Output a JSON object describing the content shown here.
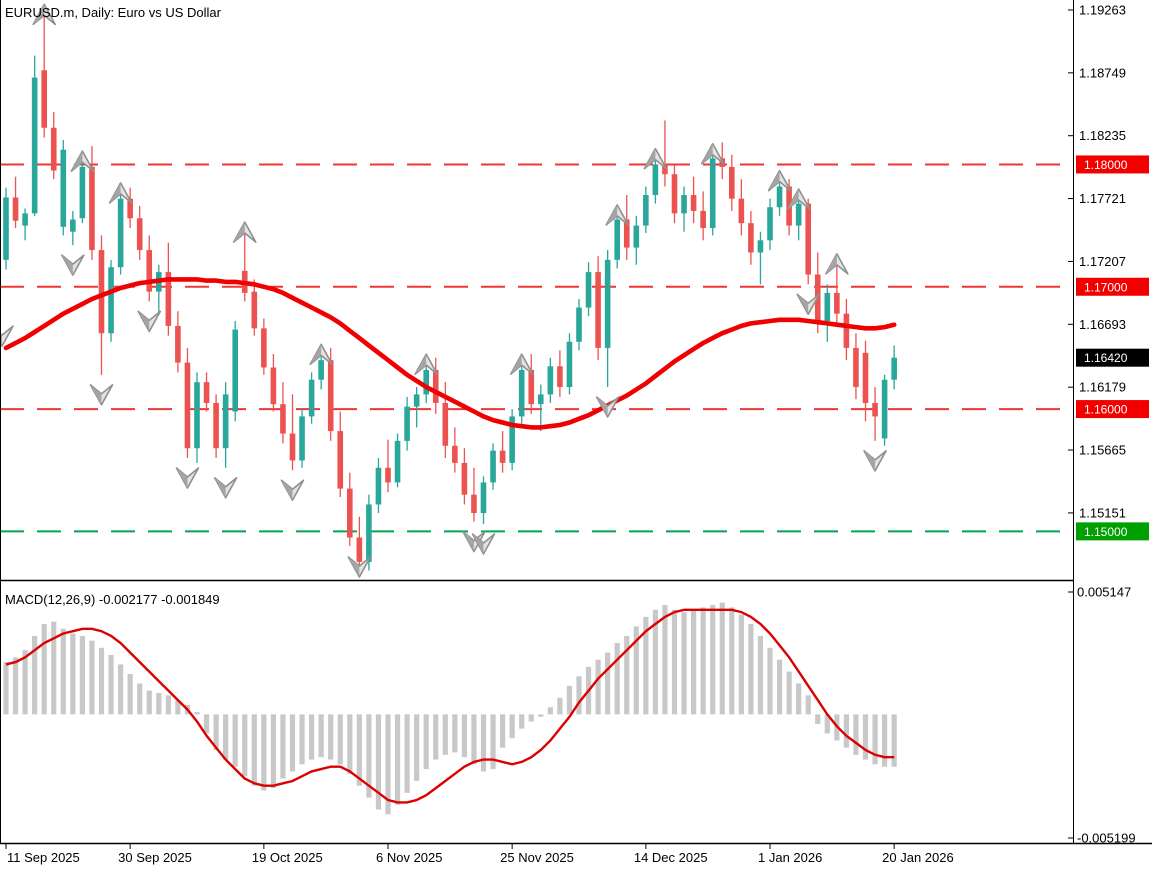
{
  "header": {
    "title": "EURUSD.m, Daily:  Euro vs US Dollar"
  },
  "macd": {
    "label": "MACD(12,26,9) -0.002177 -0.001849"
  },
  "colors": {
    "bull": "#2aa79b",
    "bear": "#ec5350",
    "ma_line": "#f00000",
    "signal_line": "#dd0000",
    "histogram": "#c8c8c8",
    "level_red": "#ef3535",
    "level_green": "#00a651",
    "badge_red": "#f20000",
    "badge_green": "#00a000",
    "badge_black": "#000000",
    "arrow_fill": "#e3e3e3",
    "arrow_dark": "#a5a5a5",
    "arrow_stroke": "#8f8f8f",
    "border": "#000000"
  },
  "price_axis": {
    "labels": [
      {
        "price": 1.19263,
        "text": "1.19263"
      },
      {
        "price": 1.18749,
        "text": "1.18749"
      },
      {
        "price": 1.18235,
        "text": "1.18235"
      },
      {
        "price": 1.17721,
        "text": "1.17721"
      },
      {
        "price": 1.17207,
        "text": "1.17207"
      },
      {
        "price": 1.16693,
        "text": "1.16693"
      },
      {
        "price": 1.16179,
        "text": "1.16179"
      },
      {
        "price": 1.15665,
        "text": "1.15665"
      },
      {
        "price": 1.15151,
        "text": "1.15151"
      }
    ],
    "badges": [
      {
        "price": 1.18,
        "text": "1.18000",
        "kind": "red"
      },
      {
        "price": 1.17,
        "text": "1.17000",
        "kind": "red"
      },
      {
        "price": 1.1642,
        "text": "1.16420",
        "kind": "black"
      },
      {
        "price": 1.16,
        "text": "1.16000",
        "kind": "red"
      },
      {
        "price": 1.15,
        "text": "1.15000",
        "kind": "green"
      }
    ]
  },
  "macd_axis": {
    "max_text": "0.005147",
    "min_text": "-0.005199",
    "max": 0.005147,
    "min": -0.005199
  },
  "time_axis": {
    "ticks": [
      {
        "bar": 0,
        "text": "11 Sep 2025"
      },
      {
        "bar": 13,
        "text": "30 Sep 2025"
      },
      {
        "bar": 27,
        "text": "19 Oct 2025"
      },
      {
        "bar": 40,
        "text": "6 Nov 2025"
      },
      {
        "bar": 53,
        "text": "25 Nov 2025"
      },
      {
        "bar": 67,
        "text": "14 Dec 2025"
      },
      {
        "bar": 80,
        "text": "1 Jan 2026"
      },
      {
        "bar": 93,
        "text": "20 Jan 2026"
      }
    ]
  },
  "chart_data": {
    "type": "candlestick-with-macd",
    "title": "EURUSD.m, Daily:  Euro vs US Dollar",
    "last_price": 1.1642,
    "levels": [
      {
        "price": 1.18,
        "color": "red"
      },
      {
        "price": 1.17,
        "color": "red"
      },
      {
        "price": 1.16,
        "color": "red"
      },
      {
        "price": 1.15,
        "color": "green"
      }
    ],
    "candles": [
      [
        1.1722,
        1.1781,
        1.1714,
        1.1773
      ],
      [
        1.1773,
        1.179,
        1.1748,
        1.1754
      ],
      [
        1.175,
        1.1764,
        1.1738,
        1.176
      ],
      [
        1.176,
        1.1889,
        1.1758,
        1.1871
      ],
      [
        1.1877,
        1.1926,
        1.1822,
        1.183
      ],
      [
        1.183,
        1.1843,
        1.1788,
        1.1795
      ],
      [
        1.1749,
        1.182,
        1.1742,
        1.1812
      ],
      [
        1.1745,
        1.1762,
        1.1734,
        1.1755
      ],
      [
        1.1756,
        1.1806,
        1.1752,
        1.1798
      ],
      [
        1.1798,
        1.1815,
        1.1722,
        1.173
      ],
      [
        1.173,
        1.1742,
        1.1628,
        1.1662
      ],
      [
        1.1662,
        1.1722,
        1.1655,
        1.1716
      ],
      [
        1.1716,
        1.178,
        1.171,
        1.1772
      ],
      [
        1.1772,
        1.1781,
        1.1748,
        1.1756
      ],
      [
        1.1756,
        1.1766,
        1.1722,
        1.173
      ],
      [
        1.173,
        1.1742,
        1.1688,
        1.1696
      ],
      [
        1.1696,
        1.1718,
        1.1678,
        1.1712
      ],
      [
        1.1712,
        1.1736,
        1.166,
        1.1668
      ],
      [
        1.1668,
        1.168,
        1.163,
        1.1638
      ],
      [
        1.1638,
        1.165,
        1.156,
        1.1568
      ],
      [
        1.1568,
        1.163,
        1.1556,
        1.1622
      ],
      [
        1.1622,
        1.163,
        1.1598,
        1.1605
      ],
      [
        1.1605,
        1.1612,
        1.156,
        1.1568
      ],
      [
        1.1568,
        1.1622,
        1.1552,
        1.1612
      ],
      [
        1.1598,
        1.1672,
        1.159,
        1.1665
      ],
      [
        1.1713,
        1.1748,
        1.1688,
        1.1695
      ],
      [
        1.1696,
        1.1706,
        1.166,
        1.1666
      ],
      [
        1.1666,
        1.1674,
        1.1628,
        1.1634
      ],
      [
        1.1634,
        1.1645,
        1.1598,
        1.1604
      ],
      [
        1.1604,
        1.1622,
        1.1572,
        1.158
      ],
      [
        1.158,
        1.1612,
        1.155,
        1.1558
      ],
      [
        1.1558,
        1.16,
        1.1552,
        1.1594
      ],
      [
        1.1594,
        1.163,
        1.1588,
        1.1624
      ],
      [
        1.1624,
        1.1648,
        1.1616,
        1.164
      ],
      [
        1.164,
        1.165,
        1.1574,
        1.1582
      ],
      [
        1.1582,
        1.1598,
        1.1528,
        1.1535
      ],
      [
        1.1535,
        1.1548,
        1.1488,
        1.1495
      ],
      [
        1.1495,
        1.1512,
        1.1466,
        1.1475
      ],
      [
        1.1475,
        1.153,
        1.1468,
        1.1522
      ],
      [
        1.1522,
        1.156,
        1.1515,
        1.1552
      ],
      [
        1.1552,
        1.1575,
        1.1532,
        1.154
      ],
      [
        1.154,
        1.158,
        1.1536,
        1.1574
      ],
      [
        1.1574,
        1.161,
        1.1566,
        1.1602
      ],
      [
        1.1602,
        1.1618,
        1.1585,
        1.1612
      ],
      [
        1.1612,
        1.164,
        1.1605,
        1.1632
      ],
      [
        1.1632,
        1.1642,
        1.1596,
        1.1605
      ],
      [
        1.1605,
        1.1622,
        1.156,
        1.157
      ],
      [
        1.157,
        1.1585,
        1.1548,
        1.1556
      ],
      [
        1.1556,
        1.1568,
        1.1522,
        1.153
      ],
      [
        1.153,
        1.1552,
        1.1508,
        1.1515
      ],
      [
        1.1515,
        1.1545,
        1.1506,
        1.154
      ],
      [
        1.154,
        1.1572,
        1.1534,
        1.1566
      ],
      [
        1.1566,
        1.1582,
        1.1548,
        1.1556
      ],
      [
        1.1556,
        1.16,
        1.155,
        1.1594
      ],
      [
        1.1594,
        1.164,
        1.1588,
        1.1632
      ],
      [
        1.1632,
        1.1645,
        1.1596,
        1.1604
      ],
      [
        1.1604,
        1.162,
        1.1582,
        1.1612
      ],
      [
        1.1612,
        1.1642,
        1.1605,
        1.1635
      ],
      [
        1.1635,
        1.1648,
        1.161,
        1.1618
      ],
      [
        1.1618,
        1.1662,
        1.1612,
        1.1655
      ],
      [
        1.1655,
        1.169,
        1.1648,
        1.1683
      ],
      [
        1.1683,
        1.172,
        1.1676,
        1.1712
      ],
      [
        1.1712,
        1.1725,
        1.164,
        1.165
      ],
      [
        1.165,
        1.173,
        1.1618,
        1.1722
      ],
      [
        1.1722,
        1.1762,
        1.1715,
        1.1755
      ],
      [
        1.1755,
        1.1775,
        1.1722,
        1.1732
      ],
      [
        1.1732,
        1.1758,
        1.1718,
        1.175
      ],
      [
        1.175,
        1.1782,
        1.1744,
        1.1775
      ],
      [
        1.1775,
        1.1808,
        1.1768,
        1.18
      ],
      [
        1.18,
        1.1836,
        1.1782,
        1.1792
      ],
      [
        1.1792,
        1.18,
        1.1752,
        1.176
      ],
      [
        1.176,
        1.1782,
        1.1745,
        1.1775
      ],
      [
        1.1775,
        1.179,
        1.1752,
        1.1762
      ],
      [
        1.1762,
        1.1778,
        1.1738,
        1.1748
      ],
      [
        1.1748,
        1.1812,
        1.1742,
        1.1805
      ],
      [
        1.1805,
        1.1818,
        1.1788,
        1.1798
      ],
      [
        1.1798,
        1.1808,
        1.1762,
        1.1772
      ],
      [
        1.1772,
        1.1788,
        1.1742,
        1.1752
      ],
      [
        1.1752,
        1.1762,
        1.1718,
        1.1728
      ],
      [
        1.1728,
        1.1745,
        1.1702,
        1.1738
      ],
      [
        1.1738,
        1.1772,
        1.173,
        1.1765
      ],
      [
        1.1765,
        1.179,
        1.1758,
        1.1782
      ],
      [
        1.1782,
        1.1788,
        1.1742,
        1.175
      ],
      [
        1.175,
        1.1775,
        1.1738,
        1.1768
      ],
      [
        1.1768,
        1.1772,
        1.1702,
        1.171
      ],
      [
        1.171,
        1.1728,
        1.1662,
        1.1672
      ],
      [
        1.1672,
        1.1702,
        1.1655,
        1.1695
      ],
      [
        1.1695,
        1.1722,
        1.1668,
        1.1678
      ],
      [
        1.1678,
        1.169,
        1.164,
        1.165
      ],
      [
        1.165,
        1.1662,
        1.1608,
        1.1618
      ],
      [
        1.1646,
        1.1656,
        1.159,
        1.1605
      ],
      [
        1.1605,
        1.1618,
        1.1574,
        1.1594
      ],
      [
        1.1576,
        1.1628,
        1.157,
        1.1624
      ],
      [
        1.1624,
        1.1652,
        1.1616,
        1.1642
      ]
    ],
    "ma": [
      1.165,
      1.1654,
      1.1658,
      1.1663,
      1.1668,
      1.1673,
      1.1678,
      1.1682,
      1.1686,
      1.169,
      1.1693,
      1.1696,
      1.1699,
      1.1701,
      1.1703,
      1.1704,
      1.1705,
      1.1706,
      1.1706,
      1.1706,
      1.1706,
      1.1705,
      1.1705,
      1.1704,
      1.1704,
      1.1703,
      1.1702,
      1.17,
      1.1698,
      1.1695,
      1.1691,
      1.1687,
      1.1683,
      1.1679,
      1.1675,
      1.167,
      1.1664,
      1.1658,
      1.1652,
      1.1646,
      1.164,
      1.1634,
      1.1628,
      1.1623,
      1.1618,
      1.1614,
      1.161,
      1.1606,
      1.1602,
      1.1598,
      1.1594,
      1.1591,
      1.1589,
      1.1587,
      1.1586,
      1.1585,
      1.1585,
      1.1586,
      1.1587,
      1.1589,
      1.1592,
      1.1595,
      1.1599,
      1.1603,
      1.1607,
      1.1611,
      1.1616,
      1.1621,
      1.1627,
      1.1633,
      1.1639,
      1.1644,
      1.1649,
      1.1654,
      1.1658,
      1.1662,
      1.1665,
      1.1668,
      1.167,
      1.1671,
      1.1672,
      1.1673,
      1.1673,
      1.1673,
      1.1672,
      1.1671,
      1.167,
      1.1669,
      1.1668,
      1.1667,
      1.1666,
      1.1666,
      1.1667,
      1.1669
    ],
    "arrows_up": [
      4,
      8,
      12,
      25,
      33,
      44,
      54,
      64,
      68,
      74,
      81,
      83,
      87
    ],
    "arrows_down": [
      7,
      10,
      15,
      19,
      23,
      30,
      37,
      49,
      50,
      63,
      84,
      91
    ],
    "edge_arrow_down": {
      "x": 2,
      "low": 1.1676
    },
    "macd": {
      "histogram": [
        0.0022,
        0.0024,
        0.0027,
        0.0033,
        0.0038,
        0.0039,
        0.0036,
        0.0034,
        0.0033,
        0.0031,
        0.0028,
        0.0025,
        0.0021,
        0.0017,
        0.0013,
        0.001,
        0.0009,
        0.0008,
        0.0006,
        0.0004,
        0.0001,
        -0.0008,
        -0.0015,
        -0.0019,
        -0.0022,
        -0.0026,
        -0.003,
        -0.0032,
        -0.0031,
        -0.0027,
        -0.0024,
        -0.0021,
        -0.0019,
        -0.0018,
        -0.0019,
        -0.0021,
        -0.0025,
        -0.003,
        -0.0035,
        -0.004,
        -0.0042,
        -0.0038,
        -0.0033,
        -0.0028,
        -0.0023,
        -0.0019,
        -0.0017,
        -0.0016,
        -0.0018,
        -0.0021,
        -0.0024,
        -0.0023,
        -0.0014,
        -0.001,
        -0.0006,
        -0.0003,
        -0.0001,
        0.0003,
        0.0007,
        0.0012,
        0.0016,
        0.002,
        0.0023,
        0.0026,
        0.003,
        0.0033,
        0.0037,
        0.0041,
        0.0044,
        0.0046,
        0.0044,
        0.0043,
        0.0044,
        0.0045,
        0.0046,
        0.0047,
        0.0045,
        0.0042,
        0.0038,
        0.0033,
        0.0028,
        0.0023,
        0.0018,
        0.0013,
        0.0008,
        -0.0004,
        -0.0008,
        -0.0011,
        -0.0014,
        -0.0017,
        -0.0019,
        -0.0021,
        -0.0022,
        -0.0022
      ],
      "signal": [
        0.0021,
        0.0022,
        0.0024,
        0.0027,
        0.003,
        0.0032,
        0.0034,
        0.0035,
        0.0036,
        0.0036,
        0.0035,
        0.0033,
        0.003,
        0.0026,
        0.0022,
        0.0018,
        0.0014,
        0.001,
        0.0006,
        0.0002,
        -0.0003,
        -0.0009,
        -0.0014,
        -0.0019,
        -0.0023,
        -0.0027,
        -0.0029,
        -0.003,
        -0.003,
        -0.0029,
        -0.0028,
        -0.0026,
        -0.0024,
        -0.0023,
        -0.0022,
        -0.0022,
        -0.0024,
        -0.0027,
        -0.003,
        -0.0033,
        -0.0036,
        -0.0037,
        -0.0037,
        -0.0036,
        -0.0034,
        -0.0031,
        -0.0028,
        -0.0025,
        -0.0022,
        -0.002,
        -0.0019,
        -0.0019,
        -0.002,
        -0.0021,
        -0.002,
        -0.0018,
        -0.0015,
        -0.0011,
        -0.0006,
        -0.0001,
        0.0005,
        0.001,
        0.0015,
        0.0019,
        0.0023,
        0.0027,
        0.0031,
        0.0035,
        0.0038,
        0.0041,
        0.0043,
        0.0044,
        0.0044,
        0.0044,
        0.0044,
        0.0044,
        0.0044,
        0.0043,
        0.0041,
        0.0038,
        0.0034,
        0.0029,
        0.0024,
        0.0018,
        0.0012,
        0.0006,
        0.0,
        -0.0005,
        -0.0009,
        -0.0012,
        -0.0015,
        -0.0017,
        -0.0018,
        -0.0018
      ]
    }
  }
}
